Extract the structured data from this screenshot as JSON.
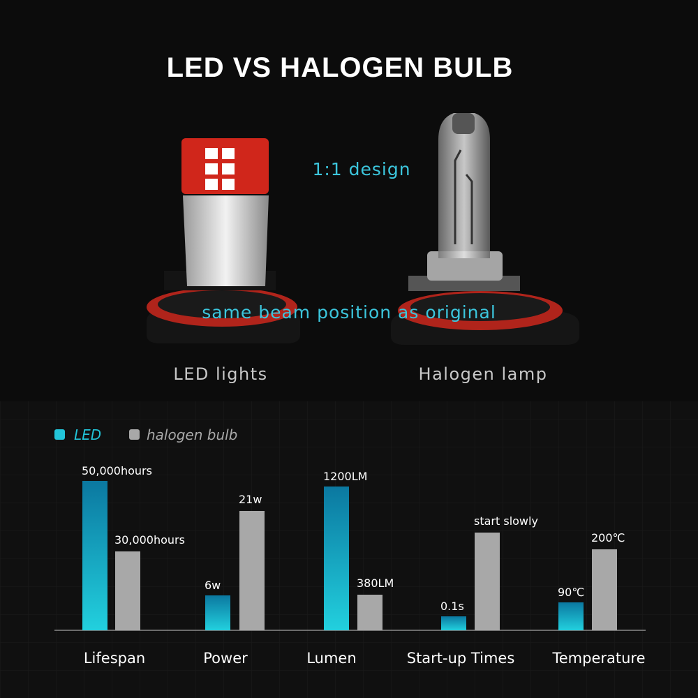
{
  "header": {
    "title": "LED VS HALOGEN BULB"
  },
  "comparison_photo": {
    "top_note": "1:1 design",
    "bottom_note": "same beam position as original",
    "left_label": "LED lights",
    "right_label": "Halogen lamp"
  },
  "legend": {
    "led": "LED",
    "halogen": "halogen bulb"
  },
  "metrics": [
    {
      "name": "Lifespan",
      "led": "50,000hours",
      "halogen": "30,000hours"
    },
    {
      "name": "Power",
      "led": "6w",
      "halogen": "21w"
    },
    {
      "name": "Lumen",
      "led": "1200LM",
      "halogen": "380LM"
    },
    {
      "name": "Start-up Times",
      "led": "0.1s",
      "halogen": "start slowly"
    },
    {
      "name": "Temperature",
      "led": "90℃",
      "halogen": "200℃"
    }
  ]
}
